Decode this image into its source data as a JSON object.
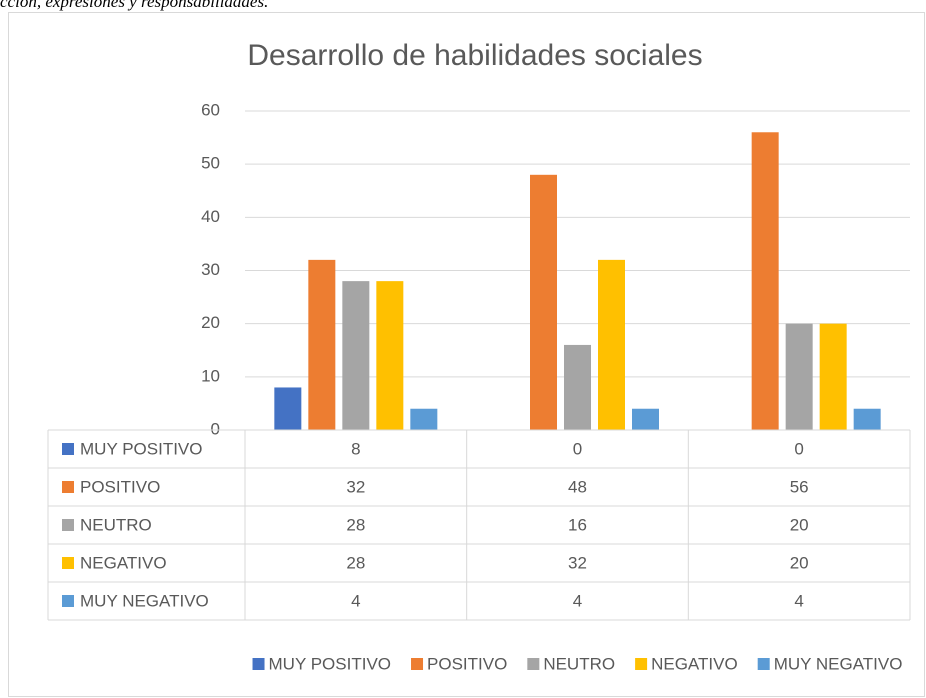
{
  "chart_data": {
    "type": "bar",
    "caption": "cción, expresiones y responsabilidades.",
    "title": "Desarrollo de habilidades sociales",
    "categories": [
      null,
      null,
      null
    ],
    "series": [
      {
        "name": "MUY POSITIVO",
        "color": "#4472c4",
        "values": [
          8,
          0,
          0
        ]
      },
      {
        "name": "POSITIVO",
        "color": "#ed7d31",
        "values": [
          32,
          48,
          56
        ]
      },
      {
        "name": "NEUTRO",
        "color": "#a5a5a5",
        "values": [
          28,
          16,
          20
        ]
      },
      {
        "name": "NEGATIVO",
        "color": "#ffc000",
        "values": [
          28,
          32,
          20
        ]
      },
      {
        "name": "MUY NEGATIVO",
        "color": "#5b9bd5",
        "values": [
          4,
          4,
          4
        ]
      }
    ],
    "ylim": [
      0,
      60
    ],
    "yticks": [
      0,
      10,
      20,
      30,
      40,
      50,
      60
    ],
    "grid": true,
    "legend": "bottom",
    "data_table": true
  }
}
